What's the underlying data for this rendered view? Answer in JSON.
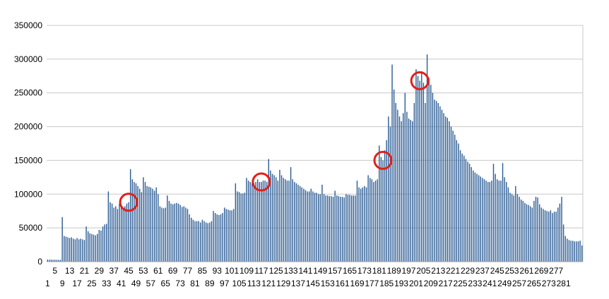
{
  "chart_data": {
    "type": "bar",
    "title": "",
    "xlabel": "",
    "ylabel": "",
    "ylim": [
      0,
      350000
    ],
    "yticks": [
      "0",
      "50000",
      "100000",
      "150000",
      "200000",
      "250000",
      "300000",
      "350000"
    ],
    "grid": true,
    "legend": "none",
    "colors": {
      "bar": "#2e5e96",
      "grid": "#c8c8c8",
      "axis": "#9a9a9a",
      "highlight": "#e0201b"
    },
    "x_start": 1,
    "x_end": 283,
    "x_labels_upper": [
      "5",
      "13",
      "21",
      "29",
      "37",
      "45",
      "53",
      "61",
      "69",
      "77",
      "85",
      "93",
      "101",
      "109",
      "117",
      "125",
      "133",
      "141",
      "149",
      "157",
      "165",
      "173",
      "181",
      "189",
      "197",
      "205",
      "213",
      "221",
      "229",
      "237",
      "245",
      "253",
      "261",
      "269",
      "277"
    ],
    "x_labels_lower": [
      "1",
      "9",
      "17",
      "25",
      "33",
      "41",
      "49",
      "57",
      "65",
      "73",
      "81",
      "89",
      "97",
      "105",
      "113",
      "121",
      "129",
      "137",
      "145",
      "153",
      "161",
      "169",
      "177",
      "185",
      "193",
      "201",
      "209",
      "217",
      "225",
      "233",
      "241",
      "249",
      "257",
      "265",
      "273",
      "281"
    ],
    "values": [
      3000,
      2800,
      2900,
      2700,
      2800,
      2600,
      2700,
      2600,
      66000,
      38000,
      37000,
      36000,
      35000,
      36000,
      34000,
      33000,
      35000,
      33000,
      34000,
      33000,
      32000,
      52000,
      45000,
      42000,
      41000,
      40000,
      39000,
      41000,
      47000,
      46000,
      52000,
      55000,
      56000,
      104000,
      88000,
      86000,
      80000,
      82000,
      78000,
      86000,
      82000,
      80000,
      82000,
      86000,
      88000,
      137000,
      122000,
      118000,
      116000,
      112000,
      108000,
      103000,
      125000,
      118000,
      112000,
      111000,
      110000,
      108000,
      105000,
      110000,
      100000,
      82000,
      80000,
      79000,
      80000,
      98000,
      90000,
      86000,
      85000,
      86000,
      87000,
      86000,
      84000,
      81000,
      82000,
      80000,
      78000,
      70000,
      65000,
      62000,
      60000,
      60000,
      60000,
      58000,
      62000,
      60000,
      58000,
      57000,
      58000,
      60000,
      75000,
      72000,
      70000,
      69000,
      70000,
      72000,
      80000,
      78000,
      77000,
      76000,
      76000,
      78000,
      116000,
      104000,
      103000,
      101000,
      101000,
      102000,
      124000,
      120000,
      118000,
      116000,
      116000,
      118000,
      122000,
      118000,
      118000,
      120000,
      120000,
      118000,
      152000,
      135000,
      130000,
      128000,
      125000,
      120000,
      136000,
      128000,
      124000,
      122000,
      120000,
      120000,
      140000,
      122000,
      118000,
      116000,
      114000,
      112000,
      110000,
      108000,
      106000,
      104000,
      104000,
      108000,
      104000,
      102000,
      102000,
      100000,
      100000,
      114000,
      100000,
      98000,
      98000,
      97000,
      97000,
      96000,
      105000,
      98000,
      97000,
      96000,
      96000,
      95000,
      100000,
      99000,
      99000,
      98000,
      98000,
      98000,
      120000,
      110000,
      108000,
      110000,
      112000,
      110000,
      128000,
      124000,
      122000,
      118000,
      120000,
      122000,
      172000,
      155000,
      150000,
      165000,
      180000,
      215000,
      200000,
      292000,
      255000,
      235000,
      225000,
      215000,
      208000,
      220000,
      250000,
      222000,
      212000,
      210000,
      208000,
      235000,
      285000,
      275000,
      268000,
      282000,
      265000,
      235000,
      307000,
      272000,
      262000,
      250000,
      240000,
      238000,
      235000,
      230000,
      225000,
      220000,
      215000,
      213000,
      208000,
      200000,
      194000,
      188000,
      180000,
      175000,
      165000,
      160000,
      157000,
      152000,
      148000,
      145000,
      140000,
      135000,
      132000,
      130000,
      128000,
      126000,
      124000,
      122000,
      120000,
      118000,
      118000,
      120000,
      145000,
      130000,
      122000,
      120000,
      120000,
      146000,
      125000,
      118000,
      110000,
      102000,
      100000,
      98000,
      112000,
      100000,
      96000,
      92000,
      90000,
      87000,
      85000,
      84000,
      82000,
      80000,
      90000,
      96000,
      95000,
      85000,
      80000,
      78000,
      76000,
      75000,
      74000,
      76000,
      72000,
      74000,
      74000,
      80000,
      86000,
      96000,
      55000,
      38000,
      34000,
      32000,
      31000,
      31000,
      30000,
      30000,
      30000,
      31000,
      24000
    ],
    "highlighted_bars": [
      45,
      117,
      183,
      203
    ]
  }
}
